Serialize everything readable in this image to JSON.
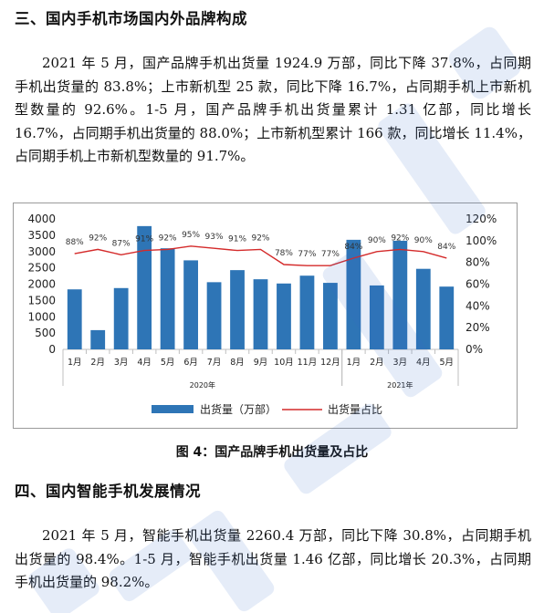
{
  "section3": {
    "heading": "三、国内手机市场国内外品牌构成",
    "paragraph": "2021 年 5 月，国产品牌手机出货量 1924.9 万部，同比下降 37.8%，占同期手机出货量的 83.8%；上市新机型 25 款，同比下降 16.7%，占同期手机上市新机型数量的 92.6%。1-5 月，国产品牌手机出货量累计 1.31 亿部，同比增长 16.7%，占同期手机出货量的 88.0%；上市新机型累计 166 款，同比增长 11.4%，占同期手机上市新机型数量的 91.7%。"
  },
  "figure": {
    "caption": "图 4：国产品牌手机出货量及占比"
  },
  "section4": {
    "heading": "四、国内智能手机发展情况",
    "paragraph": "2021 年 5 月，智能手机出货量 2260.4 万部，同比下降 30.8%，占同期手机出货量的 98.4%。1-5 月，智能手机出货量 1.46 亿部，同比增长 20.3%，占同期手机出货量的 98.2%。"
  },
  "colors": {
    "bar": "#2e75b6",
    "line": "#d42a2a",
    "watermark": "#3a6ec8"
  },
  "chart_data": {
    "type": "bar",
    "categories": [
      "1月",
      "2月",
      "3月",
      "4月",
      "5月",
      "6月",
      "7月",
      "8月",
      "9月",
      "10月",
      "11月",
      "12月",
      "1月",
      "2月",
      "3月",
      "4月",
      "5月"
    ],
    "year_groups": [
      {
        "label": "2020年",
        "from": 0,
        "to": 11
      },
      {
        "label": "2021年",
        "from": 12,
        "to": 16
      }
    ],
    "series": [
      {
        "name": "出货量（万部）",
        "type": "bar",
        "axis": "left",
        "values": [
          1840,
          590,
          1880,
          3780,
          3100,
          2730,
          2060,
          2430,
          2150,
          2020,
          2260,
          2040,
          3360,
          1960,
          3330,
          2470,
          1925
        ]
      },
      {
        "name": "出货量占比",
        "type": "line",
        "axis": "right",
        "values": [
          88,
          92,
          87,
          91,
          92,
          95,
          93,
          91,
          92,
          78,
          77,
          77,
          84,
          90,
          92,
          90,
          84
        ],
        "labels": [
          "88%",
          "92%",
          "87%",
          "91%",
          "92%",
          "95%",
          "93%",
          "91%",
          "92%",
          "78%",
          "77%",
          "77%",
          "84%",
          "90%",
          "92%",
          "90%",
          "84%"
        ]
      }
    ],
    "y_left": {
      "min": 0,
      "max": 4000,
      "ticks": [
        "0",
        "500",
        "1000",
        "1500",
        "2000",
        "2500",
        "3000",
        "3500",
        "4000"
      ]
    },
    "y_right": {
      "min": 0,
      "max": 120,
      "ticks": [
        "0%",
        "20%",
        "40%",
        "60%",
        "80%",
        "100%",
        "120%"
      ]
    },
    "legend_position": "bottom",
    "grid": false
  }
}
